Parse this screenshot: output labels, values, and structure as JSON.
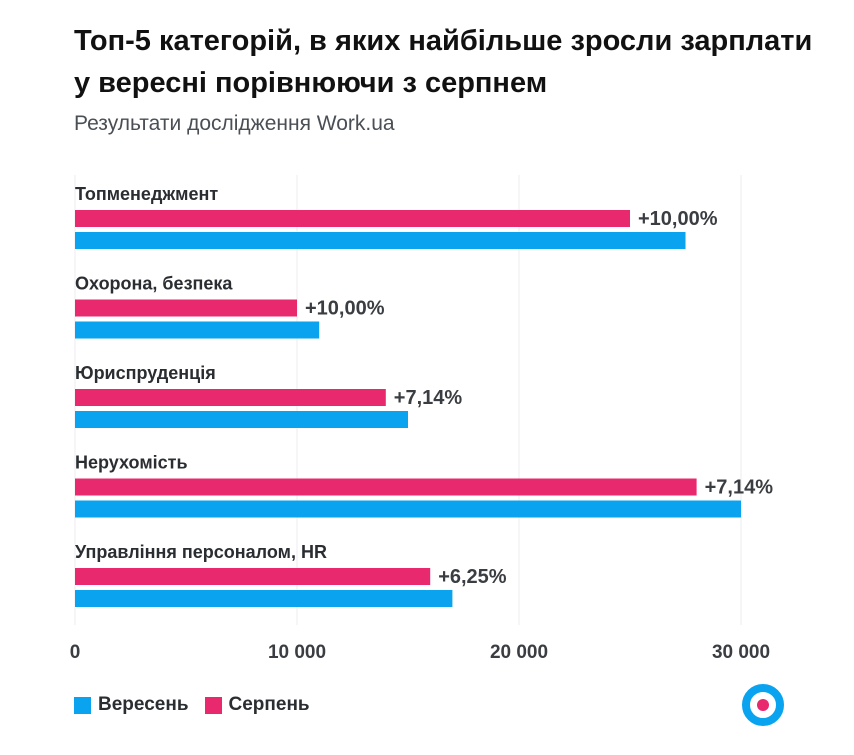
{
  "header": {
    "title": "Топ-5 категорій, в яких найбільше зросли зарплати у вересні порівнюючи з серпнем",
    "subtitle": "Результати дослідження Work.ua"
  },
  "colors": {
    "september": "#0aa3ef",
    "august": "#e8296d",
    "grid": "#eceef0",
    "logo_ring": "#0aa3ef",
    "logo_dot": "#e8296d"
  },
  "logo": {
    "icon": "work-ua-logo-icon"
  },
  "chart_data": {
    "type": "bar",
    "orientation": "horizontal",
    "categories": [
      "Топменеджмент",
      "Охорона, безпека",
      "Юриспруденція",
      "Нерухомість",
      "Управління персоналом, HR"
    ],
    "series": [
      {
        "name": "Серпень",
        "values": [
          25000,
          10000,
          14000,
          28000,
          16000
        ]
      },
      {
        "name": "Вересень",
        "values": [
          27500,
          11000,
          15000,
          30000,
          17000
        ]
      }
    ],
    "data_labels": [
      "+10,00%",
      "+10,00%",
      "+7,14%",
      "+7,14%",
      "+6,25%"
    ],
    "xlim": [
      0,
      30000
    ],
    "x_ticks": [
      0,
      10000,
      20000,
      30000
    ],
    "x_tick_labels": [
      "0",
      "10 000",
      "20 000",
      "30 000"
    ],
    "grid": true,
    "legend_placement": "bottom-left",
    "legend": [
      "Вересень",
      "Серпень"
    ]
  }
}
